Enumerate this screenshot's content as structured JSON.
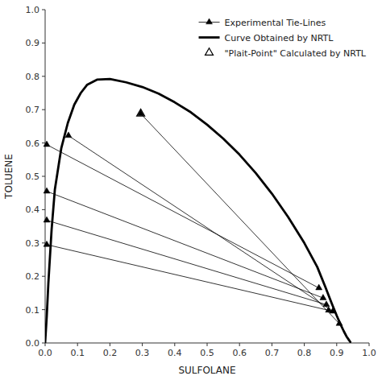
{
  "chart_data": {
    "type": "line",
    "xlabel": "SULFOLANE",
    "ylabel": "TOLUENE",
    "xlim": [
      0.0,
      1.0
    ],
    "ylim": [
      0.0,
      1.0
    ],
    "xticks": [
      {
        "value": 0.0,
        "label": "0.0"
      },
      0.1,
      0.2,
      0.3,
      0.4,
      0.5,
      0.6,
      0.7,
      0.8,
      0.9,
      {
        "value": 1.0,
        "label": "1.0"
      }
    ],
    "yticks": [
      {
        "value": 0.0,
        "label": "0.0"
      },
      0.1,
      0.2,
      0.3,
      0.4,
      0.5,
      0.6,
      0.7,
      0.8,
      0.9,
      {
        "value": 1.0,
        "label": "1.0"
      }
    ],
    "grid": false,
    "legend": "upper right",
    "series": [
      {
        "name": "Experimental Tie-Lines",
        "type": "line",
        "color": "black",
        "marker": "triangle",
        "line_style": "solid",
        "x": [
          0.005,
          0.845,
          null,
          0.005,
          0.858,
          null,
          0.005,
          0.868,
          null,
          0.005,
          0.875,
          null,
          0.072,
          0.888,
          null,
          0.295,
          0.908
        ],
        "values": [
          0.595,
          0.165,
          null,
          0.455,
          0.135,
          null,
          0.368,
          0.115,
          null,
          0.295,
          0.098,
          null,
          0.622,
          0.095,
          null,
          0.688,
          0.058
        ]
      },
      {
        "name": "Curve Obtained by NRTL",
        "type": "line",
        "color": "black",
        "line_style": "solid",
        "x": [
          0.0,
          0.005,
          0.01,
          0.02,
          0.03,
          0.05,
          0.07,
          0.09,
          0.11,
          0.13,
          0.16,
          0.2,
          0.25,
          0.3,
          0.35,
          0.4,
          0.45,
          0.5,
          0.55,
          0.6,
          0.65,
          0.7,
          0.75,
          0.8,
          0.84,
          0.865,
          0.885,
          0.9,
          0.912,
          0.922,
          0.93,
          0.937,
          0.942
        ],
        "values": [
          0.0,
          0.08,
          0.18,
          0.34,
          0.46,
          0.585,
          0.66,
          0.715,
          0.75,
          0.775,
          0.79,
          0.792,
          0.782,
          0.768,
          0.748,
          0.722,
          0.692,
          0.655,
          0.613,
          0.565,
          0.51,
          0.448,
          0.378,
          0.3,
          0.228,
          0.168,
          0.118,
          0.082,
          0.055,
          0.035,
          0.02,
          0.01,
          0.003
        ]
      },
      {
        "name": "\"Plait-Point\" Calculated by NRTL",
        "type": "scatter",
        "color": "black",
        "marker": "open-triangle",
        "line_style": "none",
        "x": [
          0.295
        ],
        "values": [
          0.688
        ]
      }
    ]
  }
}
